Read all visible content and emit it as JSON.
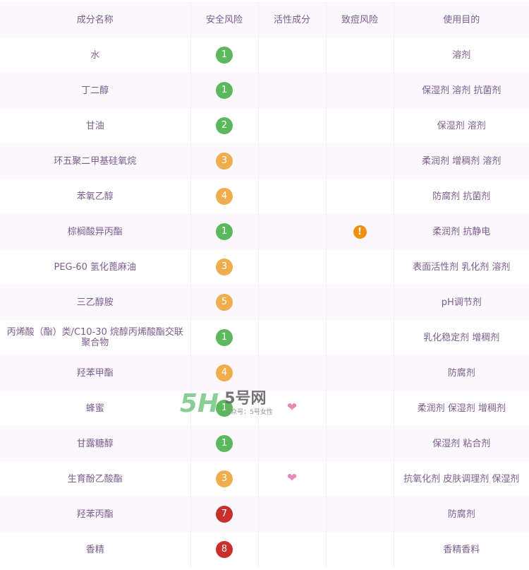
{
  "headers": [
    "成分名称",
    "安全风险",
    "活性成分",
    "致痘风险",
    "使用目的"
  ],
  "colors": {
    "green": "#5cb85c",
    "orange": "#f0ad4e",
    "red": "#c9302c",
    "text": "#7b5d8c"
  },
  "rows": [
    {
      "name": "水",
      "risk": "1",
      "active": "",
      "acne": "",
      "purpose": "溶剂"
    },
    {
      "name": "丁二醇",
      "risk": "1",
      "active": "",
      "acne": "",
      "purpose": "保湿剂 溶剂 抗菌剂"
    },
    {
      "name": "甘油",
      "risk": "2",
      "active": "",
      "acne": "",
      "purpose": "保湿剂 溶剂"
    },
    {
      "name": "环五聚二甲基硅氧烷",
      "risk": "3",
      "active": "",
      "acne": "",
      "purpose": "柔润剂 增稠剂 溶剂"
    },
    {
      "name": "苯氧乙醇",
      "risk": "4",
      "active": "",
      "acne": "",
      "purpose": "防腐剂 抗菌剂"
    },
    {
      "name": "棕榈酸异丙酯",
      "risk": "1",
      "active": "",
      "acne": "!",
      "purpose": "柔润剂 抗静电"
    },
    {
      "name": "PEG-60 氢化蓖麻油",
      "risk": "3",
      "active": "",
      "acne": "",
      "purpose": "表面活性剂 乳化剂 溶剂"
    },
    {
      "name": "三乙醇胺",
      "risk": "5",
      "active": "",
      "acne": "",
      "purpose": "pH调节剂"
    },
    {
      "name": "丙烯酸（酯）类/C10-30 烷醇丙烯酸酯交联聚合物",
      "risk": "1",
      "active": "",
      "acne": "",
      "purpose": "乳化稳定剂 增稠剂"
    },
    {
      "name": "羟苯甲酯",
      "risk": "4",
      "active": "",
      "acne": "",
      "purpose": "防腐剂"
    },
    {
      "name": "蜂蜜",
      "risk": "1",
      "active": "heart",
      "acne": "",
      "purpose": "柔润剂 保湿剂 增稠剂"
    },
    {
      "name": "甘露糖醇",
      "risk": "1",
      "active": "",
      "acne": "",
      "purpose": "保湿剂 粘合剂"
    },
    {
      "name": "生育酚乙酸酯",
      "risk": "3",
      "active": "heart",
      "acne": "",
      "purpose": "抗氧化剂 皮肤调理剂 保湿剂"
    },
    {
      "name": "羟苯丙酯",
      "risk": "7",
      "active": "",
      "acne": "",
      "purpose": "防腐剂"
    },
    {
      "name": "香精",
      "risk": "8",
      "active": "",
      "acne": "",
      "purpose": "香精香料"
    }
  ],
  "watermark": {
    "logo": "5H",
    "title": "5号网",
    "subtitle": "公众号：5号女性"
  }
}
